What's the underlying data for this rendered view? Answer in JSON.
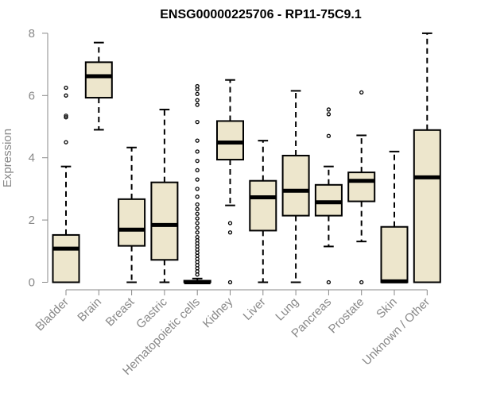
{
  "chart_data": {
    "type": "boxplot",
    "title": "ENSG00000225706 - RP11-75C9.1",
    "xlabel": "",
    "ylabel": "Expression",
    "ylim": [
      0,
      8
    ],
    "yticks": [
      0,
      2,
      4,
      6,
      8
    ],
    "box_fill": "#ede6cc",
    "box_stroke": "#000000",
    "categories": [
      "Bladder",
      "Brain",
      "Breast",
      "Gastric",
      "Hematopoietic cells",
      "Kidney",
      "Liver",
      "Lung",
      "Pancreas",
      "Prostate",
      "Skin",
      "Unknown / Other"
    ],
    "boxes": [
      {
        "name": "Bladder",
        "min": 0,
        "q1": 0,
        "median": 1.08,
        "q3": 1.52,
        "max": 3.72,
        "outliers": [
          4.5,
          5.3,
          5.35,
          6.0,
          6.25
        ]
      },
      {
        "name": "Brain",
        "min": 4.9,
        "q1": 5.93,
        "median": 6.62,
        "q3": 7.07,
        "max": 7.7,
        "outliers": []
      },
      {
        "name": "Breast",
        "min": 0,
        "q1": 1.17,
        "median": 1.69,
        "q3": 2.67,
        "max": 4.33,
        "outliers": []
      },
      {
        "name": "Gastric",
        "min": 0,
        "q1": 0.72,
        "median": 1.84,
        "q3": 3.21,
        "max": 5.55,
        "outliers": []
      },
      {
        "name": "Hematopoietic cells",
        "min": 0,
        "q1": 0,
        "median": 0,
        "q3": 0.05,
        "max": 0.12,
        "outliers": [
          0.25,
          0.35,
          0.45,
          0.55,
          0.65,
          0.75,
          0.85,
          0.95,
          1.05,
          1.15,
          1.25,
          1.35,
          1.45,
          1.6,
          1.75,
          1.9,
          2.05,
          2.2,
          2.35,
          2.5,
          2.75,
          3.0,
          3.3,
          3.6,
          3.9,
          4.2,
          4.55,
          5.15,
          5.7,
          5.85,
          6.05,
          6.2,
          6.3
        ]
      },
      {
        "name": "Kidney",
        "min": 2.47,
        "q1": 3.94,
        "median": 4.49,
        "q3": 5.18,
        "max": 6.5,
        "outliers": [
          0,
          1.6,
          1.9
        ]
      },
      {
        "name": "Liver",
        "min": 0,
        "q1": 1.66,
        "median": 2.73,
        "q3": 3.26,
        "max": 4.55,
        "outliers": []
      },
      {
        "name": "Lung",
        "min": 0,
        "q1": 2.14,
        "median": 2.94,
        "q3": 4.07,
        "max": 6.15,
        "outliers": []
      },
      {
        "name": "Pancreas",
        "min": 1.15,
        "q1": 2.14,
        "median": 2.57,
        "q3": 3.13,
        "max": 3.72,
        "outliers": [
          0,
          4.7,
          5.4,
          5.55
        ]
      },
      {
        "name": "Prostate",
        "min": 1.31,
        "q1": 2.6,
        "median": 3.26,
        "q3": 3.53,
        "max": 4.72,
        "outliers": [
          0,
          6.1
        ]
      },
      {
        "name": "Skin",
        "min": 0,
        "q1": 0,
        "median": 0.03,
        "q3": 1.78,
        "max": 4.2,
        "outliers": []
      },
      {
        "name": "Unknown / Other",
        "min": 0,
        "q1": 0,
        "median": 3.37,
        "q3": 4.89,
        "max": 8.0,
        "outliers": []
      }
    ]
  }
}
